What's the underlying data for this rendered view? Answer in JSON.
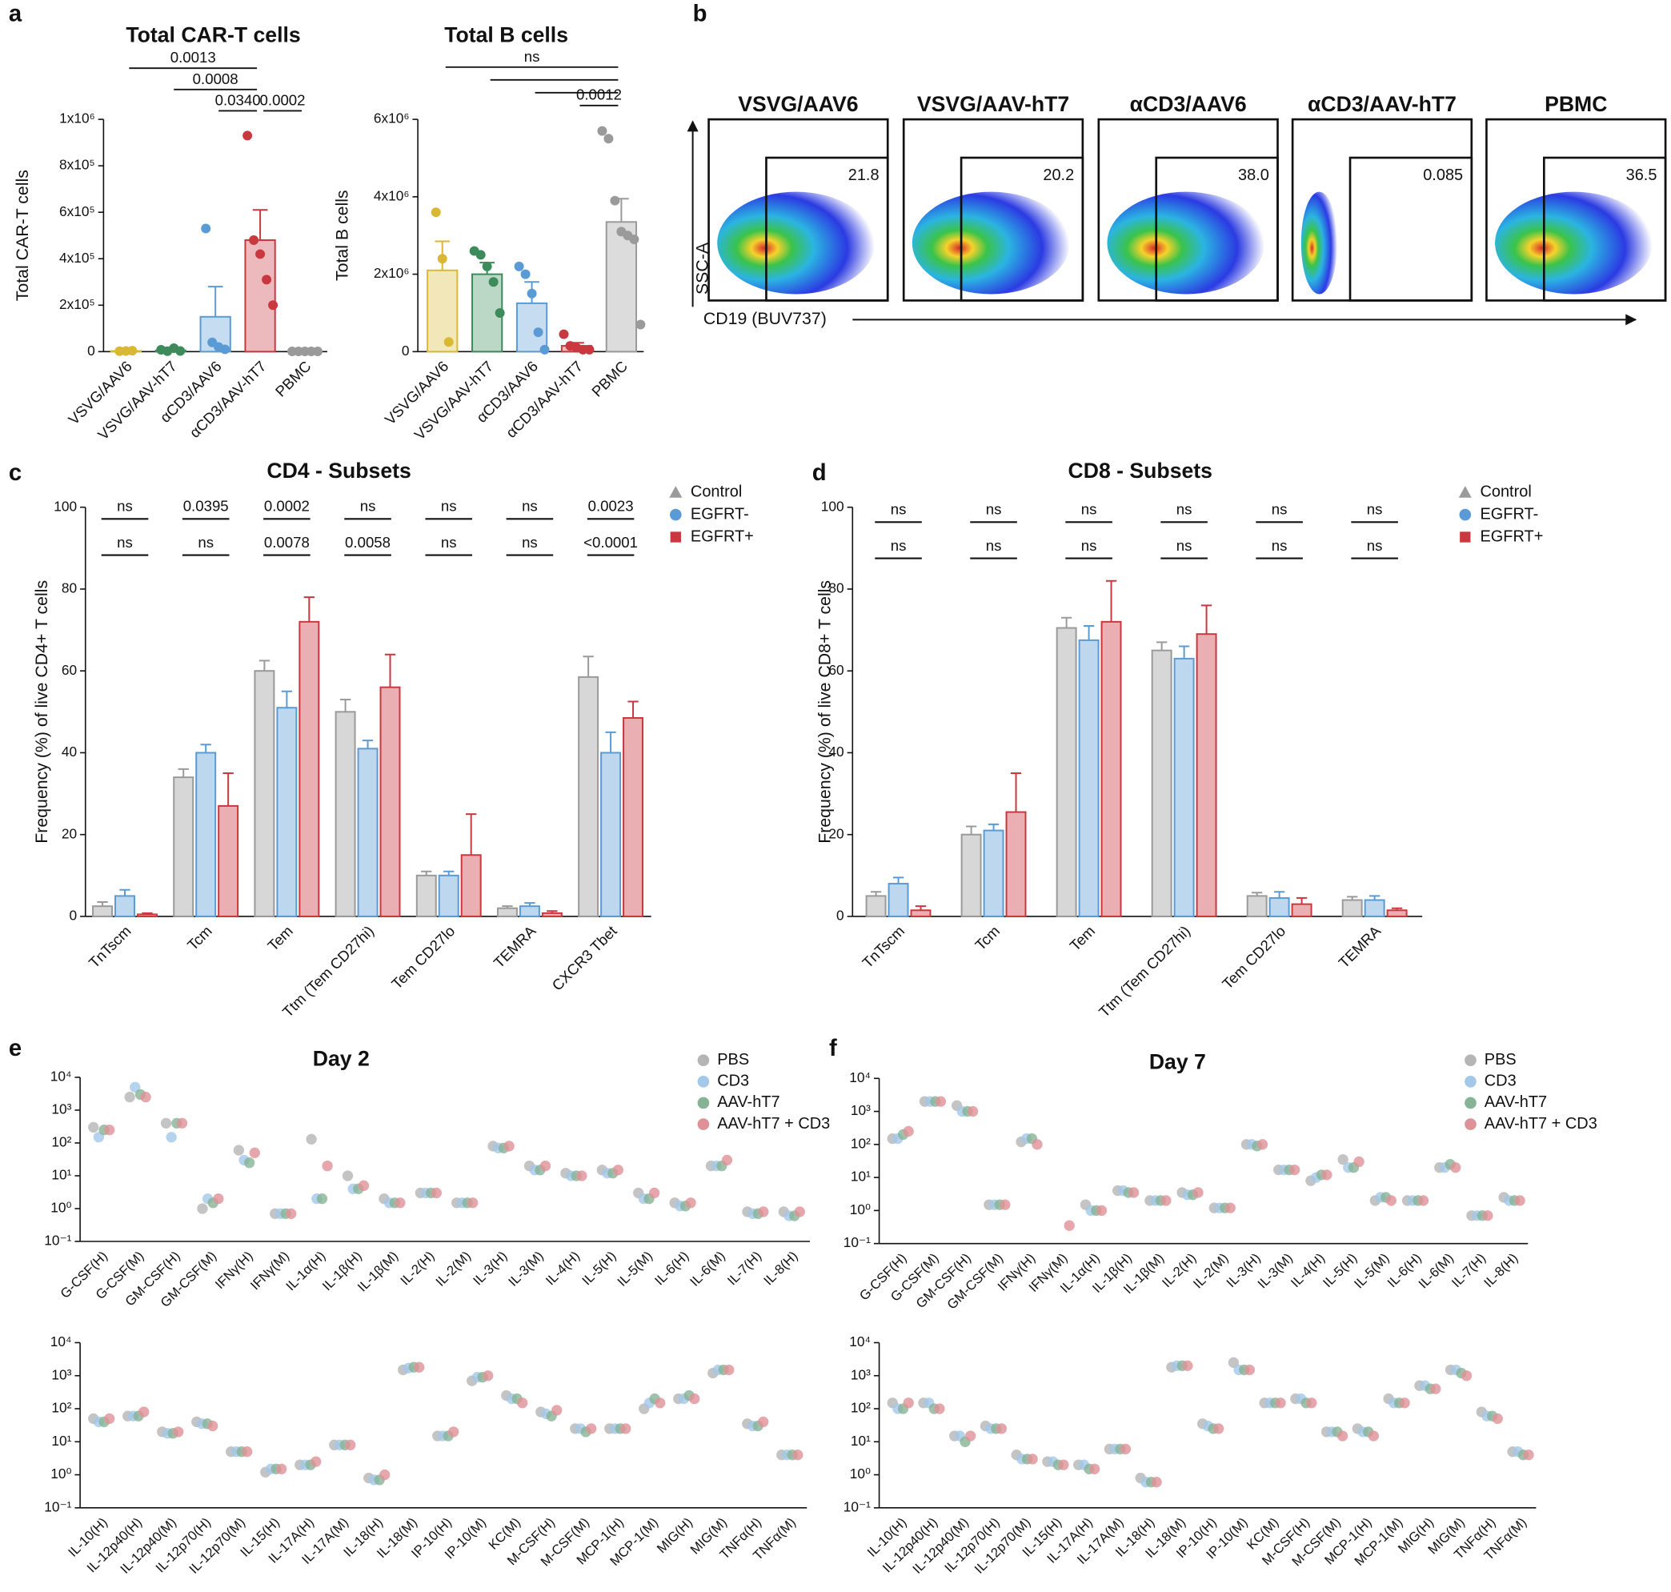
{
  "chart_data": [
    {
      "type": "bar",
      "panel": "a",
      "title": "Total CAR-T cells",
      "ylabel": "Total CAR-T cells",
      "categories": [
        "VSVG/AAV6",
        "VSVG/AAV-hT7",
        "αCD3/AAV6",
        "αCD3/AAV-hT7",
        "PBMC"
      ],
      "colors": [
        "#d9b934",
        "#3d8b5a",
        "#5b9bd5",
        "#c9383f",
        "#9a9a9a"
      ],
      "values": [
        3000,
        5000,
        150000,
        480000,
        1000
      ],
      "errors": [
        1000,
        3000,
        130000,
        130000,
        500
      ],
      "points": [
        [
          2000,
          3000,
          4000
        ],
        [
          8000,
          2000,
          15000,
          3000
        ],
        [
          530000,
          40000,
          20000,
          10000
        ],
        [
          930000,
          480000,
          420000,
          310000,
          200000
        ],
        [
          1000,
          1000,
          1000,
          1000,
          1000
        ]
      ],
      "ylim": [
        0,
        1000000
      ],
      "yticks": [
        0,
        {
          "value": 200000,
          "label": "2x10⁵"
        },
        {
          "value": 400000,
          "label": "4x10⁵"
        },
        {
          "value": 600000,
          "label": "6x10⁵"
        },
        {
          "value": 800000,
          "label": "8x10⁵"
        },
        {
          "value": 1000000,
          "label": "1x10⁶"
        }
      ],
      "brackets": [
        {
          "between": [
            0,
            3
          ],
          "label": "0.0013"
        },
        {
          "between": [
            1,
            3
          ],
          "label": "0.0008"
        },
        {
          "between": [
            2,
            3
          ],
          "label": "0.0340"
        },
        {
          "between": [
            3,
            4
          ],
          "label": "0.0002"
        }
      ]
    },
    {
      "type": "bar",
      "title": "Total B cells",
      "ylabel": "Total B cells",
      "categories": [
        "VSVG/AAV6",
        "VSVG/AAV-hT7",
        "αCD3/AAV6",
        "αCD3/AAV-hT7",
        "PBMC"
      ],
      "colors": [
        "#d9b934",
        "#3d8b5a",
        "#5b9bd5",
        "#c9383f",
        "#9a9a9a"
      ],
      "values": [
        2100000,
        2000000,
        1250000,
        150000,
        3350000
      ],
      "errors": [
        750000,
        300000,
        550000,
        80000,
        600000
      ],
      "points": [
        [
          3600000,
          2400000,
          250000
        ],
        [
          2600000,
          2500000,
          2200000,
          1800000,
          1000000
        ],
        [
          2200000,
          2000000,
          1500000,
          500000,
          50000
        ],
        [
          450000,
          150000,
          100000,
          50000,
          50000
        ],
        [
          5700000,
          5500000,
          3900000,
          3100000,
          3000000,
          2900000,
          700000
        ]
      ],
      "ylim": [
        0,
        6000000
      ],
      "yticks": [
        0,
        {
          "value": 2000000,
          "label": "2x10⁶"
        },
        {
          "value": 4000000,
          "label": "4x10⁶"
        },
        {
          "value": 6000000,
          "label": "6x10⁶"
        }
      ],
      "brackets": [
        {
          "between": [
            0,
            4
          ],
          "label": "ns"
        },
        {
          "between": [
            1,
            4
          ]
        },
        {
          "between": [
            2,
            4
          ]
        },
        {
          "between": [
            3,
            4
          ],
          "label": "0.0012"
        }
      ]
    },
    {
      "type": "bar",
      "panel": "c",
      "title": "CD4 - Subsets",
      "ylabel": "Frequency (%) of live CD4+ T cells",
      "categories": [
        "TnTscm",
        "Tcm",
        "Tem",
        "Ttm (Tem CD27hi)",
        "Tem CD27lo",
        "TEMRA",
        "CXCR3 Tbet"
      ],
      "series": [
        {
          "name": "Control",
          "color": "#9a9a9a",
          "marker": "triangle",
          "values": [
            2.5,
            34,
            60,
            50,
            10,
            2,
            58.5
          ],
          "errors": [
            1,
            2,
            2.5,
            3,
            1,
            0.5,
            5
          ]
        },
        {
          "name": "EGFRT-",
          "color": "#5b9bd5",
          "marker": "circle",
          "values": [
            5,
            40,
            51,
            41,
            10,
            2.5,
            40
          ],
          "errors": [
            1.5,
            2,
            4,
            2,
            1,
            0.8,
            5
          ]
        },
        {
          "name": "EGFRT+",
          "color": "#c9383f",
          "marker": "square",
          "values": [
            0.5,
            27,
            72,
            56,
            15,
            0.8,
            48.5
          ],
          "errors": [
            0.3,
            8,
            6,
            8,
            10,
            0.5,
            4
          ]
        }
      ],
      "significance_rows": [
        [
          "ns",
          "0.0395",
          "0.0002",
          "ns",
          "ns",
          "ns",
          "0.0023"
        ],
        [
          "ns",
          "ns",
          "0.0078",
          "0.0058",
          "ns",
          "ns",
          "<0.0001"
        ]
      ],
      "ylim": [
        0,
        100
      ],
      "yticks": [
        0,
        20,
        40,
        60,
        80,
        100
      ]
    },
    {
      "type": "bar",
      "panel": "d",
      "title": "CD8 - Subsets",
      "ylabel": "Frequency (%) of live CD8+ T cells",
      "categories": [
        "TnTscm",
        "Tcm",
        "Tem",
        "Ttm (Tem CD27hi)",
        "Tem CD27lo",
        "TEMRA"
      ],
      "series": [
        {
          "name": "Control",
          "color": "#9a9a9a",
          "marker": "triangle",
          "values": [
            5,
            20,
            70.5,
            65,
            5,
            4
          ],
          "errors": [
            1,
            2,
            2.5,
            2,
            0.8,
            0.8
          ]
        },
        {
          "name": "EGFRT-",
          "color": "#5b9bd5",
          "marker": "circle",
          "values": [
            8,
            21,
            67.5,
            63,
            4.5,
            4
          ],
          "errors": [
            1.5,
            1.5,
            3.5,
            3,
            1.5,
            1
          ]
        },
        {
          "name": "EGFRT+",
          "color": "#c9383f",
          "marker": "square",
          "values": [
            1.5,
            25.5,
            72,
            69,
            3,
            1.5
          ],
          "errors": [
            1,
            9.5,
            10,
            7,
            1.5,
            0.5
          ]
        }
      ],
      "significance_rows": [
        [
          "ns",
          "ns",
          "ns",
          "ns",
          "ns",
          "ns"
        ],
        [
          "ns",
          "ns",
          "ns",
          "ns",
          "ns",
          "ns"
        ]
      ],
      "ylim": [
        0,
        100
      ],
      "yticks": [
        0,
        20,
        40,
        60,
        80,
        100
      ]
    },
    {
      "type": "strip",
      "panel": "e",
      "title": "Day 2",
      "log": true,
      "categories": [
        "G-CSF(H)",
        "G-CSF(M)",
        "GM-CSF(H)",
        "GM-CSF(M)",
        "IFNγ(H)",
        "IFNγ(M)",
        "IL-1α(H)",
        "IL-1β(H)",
        "IL-1β(M)",
        "IL-2(H)",
        "IL-2(M)",
        "IL-3(H)",
        "IL-3(M)",
        "IL-4(H)",
        "IL-5(H)",
        "IL-5(M)",
        "IL-6(H)",
        "IL-6(M)",
        "IL-7(H)",
        "IL-8(H)"
      ],
      "series": [
        {
          "name": "PBS",
          "color": "#b5b5b5",
          "values": [
            300,
            2500,
            400,
            1,
            60,
            0.7,
            130,
            10,
            2,
            3,
            1.5,
            80,
            20,
            12,
            15,
            3,
            1.5,
            20,
            0.8,
            0.8
          ]
        },
        {
          "name": "CD3",
          "color": "#a3c8e8",
          "values": [
            150,
            5000,
            150,
            2,
            30,
            0.7,
            2,
            4,
            1.5,
            3,
            1.5,
            70,
            15,
            10,
            12,
            2,
            1.2,
            20,
            0.7,
            0.6
          ]
        },
        {
          "name": "AAV-hT7",
          "color": "#86b395",
          "values": [
            250,
            3000,
            400,
            1.5,
            25,
            0.7,
            2,
            4,
            1.5,
            3,
            1.5,
            70,
            15,
            10,
            12,
            2,
            1.2,
            20,
            0.7,
            0.6
          ]
        },
        {
          "name": "AAV-hT7 + CD3",
          "color": "#de9196",
          "values": [
            250,
            2500,
            400,
            2,
            50,
            0.7,
            20,
            5,
            1.5,
            3,
            1.5,
            80,
            20,
            10,
            15,
            3,
            1.5,
            30,
            0.8,
            0.8
          ]
        }
      ],
      "ylim": [
        0.1,
        10000
      ],
      "yticks": [
        {
          "value": 0.1,
          "label": "10⁻¹"
        },
        {
          "value": 1,
          "label": "10⁰"
        },
        {
          "value": 10,
          "label": "10¹"
        },
        {
          "value": 100,
          "label": "10²"
        },
        {
          "value": 1000,
          "label": "10³"
        },
        {
          "value": 10000,
          "label": "10⁴"
        }
      ]
    },
    {
      "type": "strip",
      "log": true,
      "categories": [
        "IL-10(H)",
        "IL-12p40(H)",
        "IL-12p40(M)",
        "IL-12p70(H)",
        "IL-12p70(M)",
        "IL-15(H)",
        "IL-17A(H)",
        "IL-17A(M)",
        "IL-18(H)",
        "IL-18(M)",
        "IP-10(H)",
        "IP-10(M)",
        "KC(M)",
        "M-CSF(H)",
        "M-CSF(M)",
        "MCP-1(H)",
        "MCP-1(M)",
        "MIG(H)",
        "MIG(M)",
        "TNFα(H)",
        "TNFα(M)"
      ],
      "series": [
        {
          "color": "#b5b5b5",
          "values": [
            50,
            60,
            20,
            40,
            5,
            1.2,
            2,
            8,
            0.8,
            1500,
            15,
            700,
            250,
            80,
            25,
            25,
            100,
            200,
            1200,
            35,
            4
          ]
        },
        {
          "color": "#a3c8e8",
          "values": [
            40,
            60,
            18,
            35,
            5,
            1.5,
            2,
            8,
            0.7,
            1700,
            15,
            900,
            200,
            70,
            25,
            25,
            150,
            200,
            1500,
            30,
            4
          ]
        },
        {
          "color": "#86b395",
          "values": [
            40,
            60,
            18,
            35,
            5,
            1.5,
            2,
            8,
            0.7,
            1800,
            15,
            900,
            200,
            60,
            20,
            25,
            200,
            250,
            1500,
            30,
            4
          ]
        },
        {
          "color": "#de9196",
          "values": [
            50,
            80,
            20,
            30,
            5,
            1.5,
            2.5,
            8,
            1,
            1800,
            20,
            1000,
            150,
            90,
            25,
            25,
            150,
            200,
            1500,
            40,
            4
          ]
        }
      ],
      "ylim": [
        0.1,
        10000
      ],
      "yticks": [
        {
          "value": 0.1,
          "label": "10⁻¹"
        },
        {
          "value": 1,
          "label": "10⁰"
        },
        {
          "value": 10,
          "label": "10¹"
        },
        {
          "value": 100,
          "label": "10²"
        },
        {
          "value": 1000,
          "label": "10³"
        },
        {
          "value": 10000,
          "label": "10⁴"
        }
      ]
    },
    {
      "type": "strip",
      "panel": "f",
      "title": "Day 7",
      "log": true,
      "categories": [
        "G-CSF(H)",
        "G-CSF(M)",
        "GM-CSF(H)",
        "GM-CSF(M)",
        "IFNγ(H)",
        "IFNγ(M)",
        "IL-1α(H)",
        "IL-1β(H)",
        "IL-1β(M)",
        "IL-2(H)",
        "IL-2(M)",
        "IL-3(H)",
        "IL-3(M)",
        "IL-4(H)",
        "IL-5(H)",
        "IL-5(M)",
        "IL-6(H)",
        "IL-6(M)",
        "IL-7(H)",
        "IL-8(H)"
      ],
      "series": [
        {
          "name": "PBS",
          "color": "#b5b5b5",
          "values": [
            150,
            2000,
            1500,
            1.5,
            120,
            null,
            1.5,
            4,
            2,
            3.5,
            1.2,
            100,
            17,
            8,
            35,
            2,
            2,
            20,
            0.7,
            2.5
          ]
        },
        {
          "name": "CD3",
          "color": "#a3c8e8",
          "values": [
            150,
            2000,
            1000,
            1.5,
            150,
            null,
            1,
            4,
            2,
            3,
            1.2,
            100,
            17,
            10,
            20,
            2.5,
            2,
            20,
            0.7,
            2
          ]
        },
        {
          "name": "AAV-hT7",
          "color": "#86b395",
          "values": [
            200,
            2000,
            1000,
            1.5,
            150,
            null,
            1,
            3.5,
            2,
            3,
            1.2,
            90,
            17,
            12,
            20,
            2.5,
            2,
            25,
            0.7,
            2
          ]
        },
        {
          "name": "AAV-hT7 + CD3",
          "color": "#de9196",
          "values": [
            250,
            2000,
            1000,
            1.5,
            100,
            0.35,
            1,
            3.5,
            2,
            3.5,
            1.2,
            100,
            17,
            12,
            30,
            2,
            2,
            20,
            0.7,
            2
          ]
        }
      ],
      "ylim": [
        0.1,
        10000
      ],
      "yticks": [
        {
          "value": 0.1,
          "label": "10⁻¹"
        },
        {
          "value": 1,
          "label": "10⁰"
        },
        {
          "value": 10,
          "label": "10¹"
        },
        {
          "value": 100,
          "label": "10²"
        },
        {
          "value": 1000,
          "label": "10³"
        },
        {
          "value": 10000,
          "label": "10⁴"
        }
      ]
    },
    {
      "type": "strip",
      "log": true,
      "categories": [
        "IL-10(H)",
        "IL-12p40(H)",
        "IL-12p40(M)",
        "IL-12p70(H)",
        "IL-12p70(M)",
        "IL-15(H)",
        "IL-17A(H)",
        "IL-17A(M)",
        "IL-18(H)",
        "IL-18(M)",
        "IP-10(H)",
        "IP-10(M)",
        "KC(M)",
        "M-CSF(H)",
        "M-CSF(M)",
        "MCP-1(H)",
        "MCP-1(M)",
        "MIG(H)",
        "MIG(M)",
        "TNFα(H)",
        "TNFα(M)"
      ],
      "series": [
        {
          "color": "#b5b5b5",
          "values": [
            150,
            150,
            15,
            30,
            4,
            2.5,
            2,
            6,
            0.8,
            1800,
            35,
            2500,
            150,
            200,
            20,
            25,
            200,
            500,
            1500,
            80,
            5
          ]
        },
        {
          "color": "#a3c8e8",
          "values": [
            100,
            150,
            15,
            25,
            3,
            2.5,
            2,
            6,
            0.6,
            2000,
            30,
            1500,
            150,
            200,
            20,
            20,
            150,
            500,
            1500,
            60,
            5
          ]
        },
        {
          "color": "#86b395",
          "values": [
            100,
            100,
            10,
            25,
            3,
            2,
            1.5,
            6,
            0.6,
            2000,
            25,
            1500,
            150,
            150,
            20,
            20,
            150,
            400,
            1200,
            60,
            4
          ]
        },
        {
          "color": "#de9196",
          "values": [
            150,
            100,
            15,
            25,
            3,
            2,
            1.5,
            6,
            0.6,
            2000,
            25,
            1500,
            150,
            150,
            15,
            15,
            150,
            400,
            1000,
            50,
            4
          ]
        }
      ],
      "ylim": [
        0.1,
        10000
      ],
      "yticks": [
        {
          "value": 0.1,
          "label": "10⁻¹"
        },
        {
          "value": 1,
          "label": "10⁰"
        },
        {
          "value": 10,
          "label": "10¹"
        },
        {
          "value": 100,
          "label": "10²"
        },
        {
          "value": 1000,
          "label": "10³"
        },
        {
          "value": 10000,
          "label": "10⁴"
        }
      ]
    }
  ],
  "flow": {
    "panel": "b",
    "ylabel": "SSC-A",
    "xlabel": "CD19 (BUV737)",
    "plots": [
      {
        "title": "VSVG/AAV6",
        "gate": "21.8"
      },
      {
        "title": "VSVG/AAV-hT7",
        "gate": "20.2"
      },
      {
        "title": "αCD3/AAV6",
        "gate": "38.0"
      },
      {
        "title": "αCD3/AAV-hT7",
        "gate": "0.085"
      },
      {
        "title": "PBMC",
        "gate": "36.5"
      }
    ]
  }
}
